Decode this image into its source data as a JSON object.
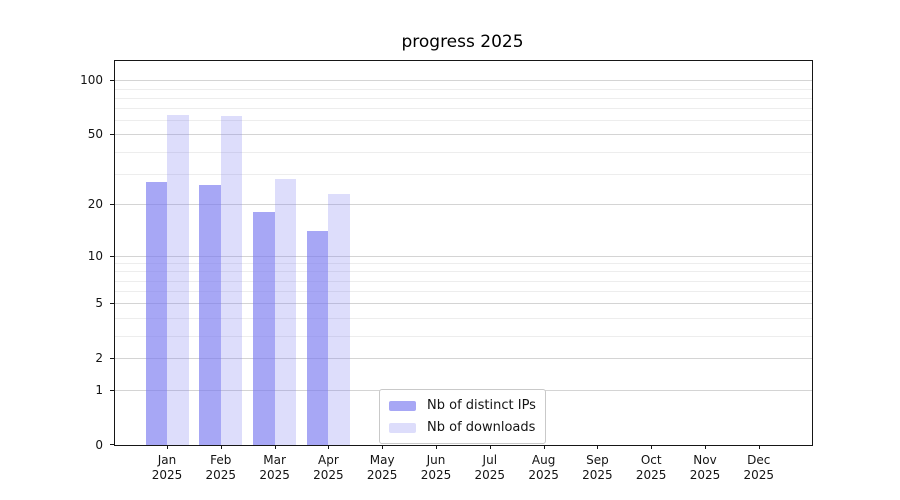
{
  "title": "progress 2025",
  "colors": {
    "bar_base": "#7878f0",
    "bar_ips": "rgba(120,120,240,0.65)",
    "bar_downloads": "rgba(120,120,240,0.25)",
    "grid_major": "#d4d4d4",
    "grid_minor": "#ededed",
    "spine": "#161616",
    "text": "#141414",
    "legend_border": "#c9c9c9",
    "legend_bg": "#ffffff"
  },
  "chart_data": {
    "type": "bar",
    "title": "progress 2025",
    "categories": [
      "Jan 2025",
      "Feb 2025",
      "Mar 2025",
      "Apr 2025",
      "May 2025",
      "Jun 2025",
      "Jul 2025",
      "Aug 2025",
      "Sep 2025",
      "Oct 2025",
      "Nov 2025",
      "Dec 2025"
    ],
    "series": [
      {
        "name": "Nb of distinct IPs",
        "values": [
          27,
          26,
          18,
          14,
          0,
          0,
          0,
          0,
          0,
          0,
          0,
          0
        ],
        "color": "rgba(120,120,240,0.65)"
      },
      {
        "name": "Nb of downloads",
        "values": [
          64,
          63,
          28,
          23,
          0,
          0,
          0,
          0,
          0,
          0,
          0,
          0
        ],
        "color": "rgba(120,120,240,0.25)"
      }
    ],
    "xlabel": "",
    "ylabel": "",
    "yscale": "symlog ln(1+x)",
    "ylim": [
      0,
      128
    ],
    "yticks_major": [
      0,
      1,
      2,
      5,
      10,
      20,
      50,
      100
    ],
    "yticks_minor": [
      3,
      4,
      6,
      7,
      8,
      9,
      30,
      40,
      60,
      70,
      80,
      90
    ],
    "grid": "horizontal, major and minor",
    "legend_position": "inside lower-center"
  }
}
